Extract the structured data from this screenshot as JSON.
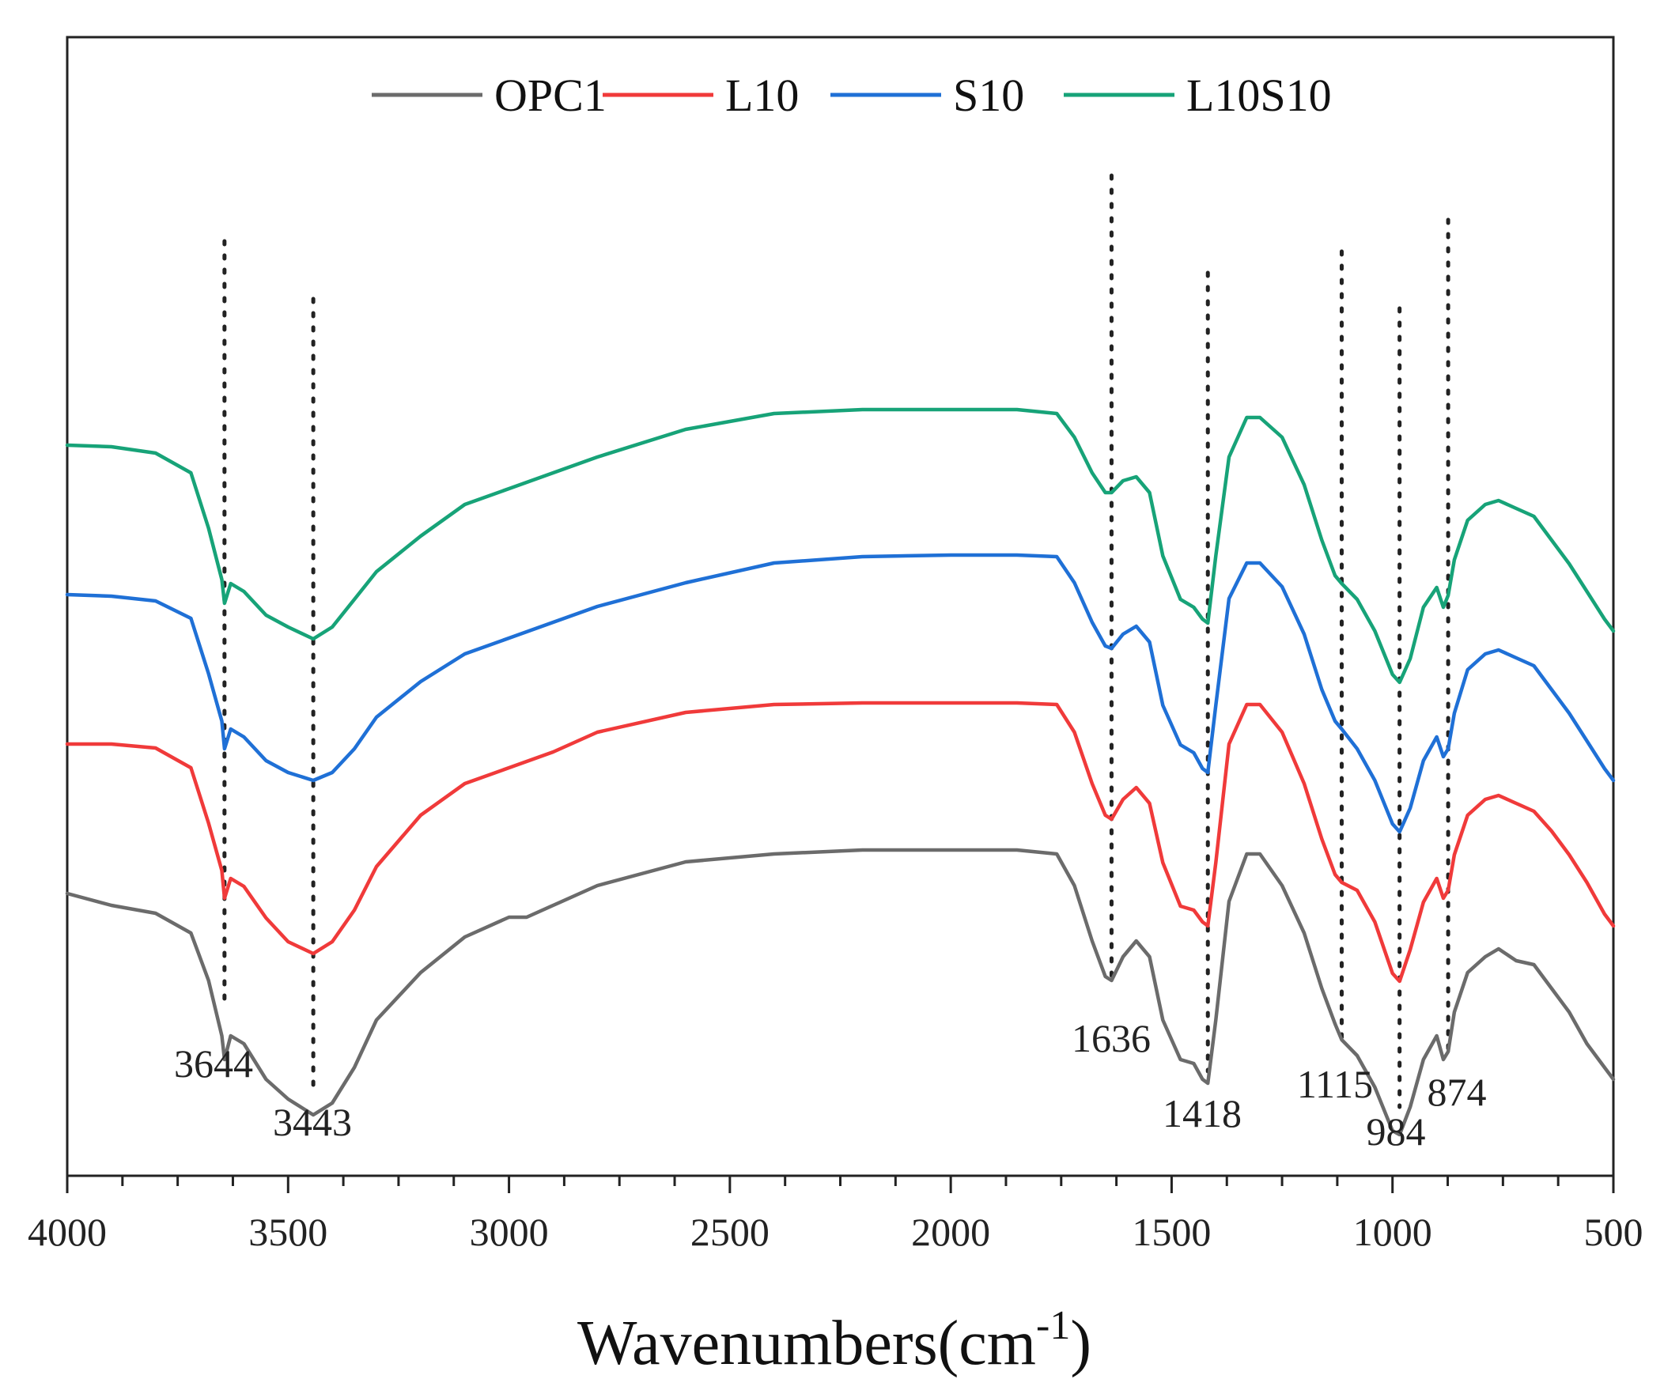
{
  "chart_data": {
    "type": "line",
    "title": "",
    "xlabel": "Wavenumbers(cm",
    "xlabel_superscript": "-1",
    "xlabel_close": ")",
    "ylabel": "",
    "xlim": [
      4000,
      500
    ],
    "x_reversed": true,
    "yticks": "none",
    "xticks": [
      "4000",
      "3500",
      "3000",
      "2500",
      "2000",
      "1500",
      "1000",
      "500"
    ],
    "xtick_values": [
      4000,
      3500,
      3000,
      2500,
      2000,
      1500,
      1000,
      500
    ],
    "legend_position": "top-center",
    "series": [
      {
        "name": "OPC1",
        "color": "#6b6b6b",
        "offset": 0,
        "points": [
          [
            4000,
            0.74
          ],
          [
            3900,
            0.755
          ],
          [
            3800,
            0.765
          ],
          [
            3720,
            0.79
          ],
          [
            3680,
            0.85
          ],
          [
            3650,
            0.92
          ],
          [
            3644,
            0.95
          ],
          [
            3630,
            0.92
          ],
          [
            3600,
            0.93
          ],
          [
            3550,
            0.975
          ],
          [
            3500,
            1.0
          ],
          [
            3443,
            1.02
          ],
          [
            3400,
            1.005
          ],
          [
            3350,
            0.96
          ],
          [
            3300,
            0.9
          ],
          [
            3200,
            0.84
          ],
          [
            3100,
            0.795
          ],
          [
            3000,
            0.77
          ],
          [
            2960,
            0.77
          ],
          [
            2900,
            0.755
          ],
          [
            2800,
            0.73
          ],
          [
            2600,
            0.7
          ],
          [
            2400,
            0.69
          ],
          [
            2200,
            0.685
          ],
          [
            2000,
            0.685
          ],
          [
            1850,
            0.685
          ],
          [
            1760,
            0.69
          ],
          [
            1720,
            0.73
          ],
          [
            1680,
            0.8
          ],
          [
            1650,
            0.845
          ],
          [
            1636,
            0.85
          ],
          [
            1610,
            0.82
          ],
          [
            1580,
            0.8
          ],
          [
            1550,
            0.82
          ],
          [
            1520,
            0.9
          ],
          [
            1480,
            0.95
          ],
          [
            1450,
            0.955
          ],
          [
            1430,
            0.975
          ],
          [
            1418,
            0.98
          ],
          [
            1400,
            0.9
          ],
          [
            1370,
            0.75
          ],
          [
            1330,
            0.69
          ],
          [
            1300,
            0.69
          ],
          [
            1250,
            0.73
          ],
          [
            1200,
            0.79
          ],
          [
            1160,
            0.86
          ],
          [
            1130,
            0.905
          ],
          [
            1115,
            0.925
          ],
          [
            1080,
            0.945
          ],
          [
            1040,
            0.985
          ],
          [
            1000,
            1.04
          ],
          [
            984,
            1.045
          ],
          [
            960,
            1.01
          ],
          [
            930,
            0.95
          ],
          [
            900,
            0.92
          ],
          [
            885,
            0.95
          ],
          [
            874,
            0.94
          ],
          [
            860,
            0.89
          ],
          [
            830,
            0.84
          ],
          [
            790,
            0.82
          ],
          [
            760,
            0.81
          ],
          [
            720,
            0.825
          ],
          [
            680,
            0.83
          ],
          [
            640,
            0.86
          ],
          [
            600,
            0.89
          ],
          [
            560,
            0.93
          ],
          [
            520,
            0.96
          ],
          [
            500,
            0.975
          ]
        ]
      },
      {
        "name": "L10",
        "color": "#f03a3a",
        "offset": -0.2,
        "points": [
          [
            4000,
            0.74
          ],
          [
            3900,
            0.74
          ],
          [
            3800,
            0.745
          ],
          [
            3720,
            0.77
          ],
          [
            3680,
            0.84
          ],
          [
            3650,
            0.9
          ],
          [
            3644,
            0.935
          ],
          [
            3630,
            0.91
          ],
          [
            3600,
            0.92
          ],
          [
            3550,
            0.96
          ],
          [
            3500,
            0.99
          ],
          [
            3443,
            1.005
          ],
          [
            3400,
            0.99
          ],
          [
            3350,
            0.95
          ],
          [
            3300,
            0.895
          ],
          [
            3200,
            0.83
          ],
          [
            3100,
            0.79
          ],
          [
            3000,
            0.77
          ],
          [
            2900,
            0.75
          ],
          [
            2800,
            0.725
          ],
          [
            2600,
            0.7
          ],
          [
            2400,
            0.69
          ],
          [
            2200,
            0.688
          ],
          [
            2000,
            0.688
          ],
          [
            1850,
            0.688
          ],
          [
            1760,
            0.69
          ],
          [
            1720,
            0.725
          ],
          [
            1680,
            0.79
          ],
          [
            1650,
            0.83
          ],
          [
            1636,
            0.835
          ],
          [
            1610,
            0.81
          ],
          [
            1580,
            0.795
          ],
          [
            1550,
            0.815
          ],
          [
            1520,
            0.89
          ],
          [
            1480,
            0.945
          ],
          [
            1450,
            0.95
          ],
          [
            1430,
            0.965
          ],
          [
            1418,
            0.97
          ],
          [
            1400,
            0.89
          ],
          [
            1370,
            0.74
          ],
          [
            1330,
            0.69
          ],
          [
            1300,
            0.69
          ],
          [
            1250,
            0.725
          ],
          [
            1200,
            0.79
          ],
          [
            1160,
            0.86
          ],
          [
            1130,
            0.905
          ],
          [
            1115,
            0.915
          ],
          [
            1080,
            0.925
          ],
          [
            1040,
            0.965
          ],
          [
            1000,
            1.03
          ],
          [
            984,
            1.04
          ],
          [
            960,
            1.0
          ],
          [
            930,
            0.94
          ],
          [
            900,
            0.91
          ],
          [
            885,
            0.935
          ],
          [
            874,
            0.925
          ],
          [
            860,
            0.88
          ],
          [
            830,
            0.83
          ],
          [
            790,
            0.81
          ],
          [
            760,
            0.805
          ],
          [
            720,
            0.815
          ],
          [
            680,
            0.825
          ],
          [
            640,
            0.85
          ],
          [
            600,
            0.88
          ],
          [
            560,
            0.915
          ],
          [
            520,
            0.955
          ],
          [
            500,
            0.97
          ]
        ]
      },
      {
        "name": "S10",
        "color": "#1f70d6",
        "offset": -0.4,
        "points": [
          [
            4000,
            0.74
          ],
          [
            3900,
            0.742
          ],
          [
            3800,
            0.748
          ],
          [
            3720,
            0.77
          ],
          [
            3680,
            0.84
          ],
          [
            3650,
            0.9
          ],
          [
            3644,
            0.935
          ],
          [
            3630,
            0.91
          ],
          [
            3600,
            0.92
          ],
          [
            3550,
            0.95
          ],
          [
            3500,
            0.965
          ],
          [
            3443,
            0.975
          ],
          [
            3400,
            0.965
          ],
          [
            3350,
            0.935
          ],
          [
            3300,
            0.895
          ],
          [
            3200,
            0.85
          ],
          [
            3100,
            0.815
          ],
          [
            3000,
            0.795
          ],
          [
            2900,
            0.775
          ],
          [
            2800,
            0.755
          ],
          [
            2600,
            0.725
          ],
          [
            2400,
            0.7
          ],
          [
            2200,
            0.692
          ],
          [
            2000,
            0.69
          ],
          [
            1850,
            0.69
          ],
          [
            1760,
            0.692
          ],
          [
            1720,
            0.725
          ],
          [
            1680,
            0.775
          ],
          [
            1650,
            0.805
          ],
          [
            1636,
            0.808
          ],
          [
            1610,
            0.79
          ],
          [
            1580,
            0.78
          ],
          [
            1550,
            0.8
          ],
          [
            1520,
            0.88
          ],
          [
            1480,
            0.93
          ],
          [
            1450,
            0.94
          ],
          [
            1430,
            0.96
          ],
          [
            1418,
            0.965
          ],
          [
            1400,
            0.88
          ],
          [
            1370,
            0.745
          ],
          [
            1330,
            0.7
          ],
          [
            1300,
            0.7
          ],
          [
            1250,
            0.73
          ],
          [
            1200,
            0.79
          ],
          [
            1160,
            0.86
          ],
          [
            1130,
            0.9
          ],
          [
            1115,
            0.91
          ],
          [
            1080,
            0.935
          ],
          [
            1040,
            0.975
          ],
          [
            1000,
            1.03
          ],
          [
            984,
            1.04
          ],
          [
            960,
            1.01
          ],
          [
            930,
            0.95
          ],
          [
            900,
            0.92
          ],
          [
            885,
            0.945
          ],
          [
            874,
            0.935
          ],
          [
            860,
            0.89
          ],
          [
            830,
            0.835
          ],
          [
            790,
            0.815
          ],
          [
            760,
            0.81
          ],
          [
            720,
            0.82
          ],
          [
            680,
            0.83
          ],
          [
            640,
            0.86
          ],
          [
            600,
            0.89
          ],
          [
            560,
            0.925
          ],
          [
            520,
            0.96
          ],
          [
            500,
            0.975
          ]
        ]
      },
      {
        "name": "L10S10",
        "color": "#17a378",
        "offset": -0.6,
        "points": [
          [
            4000,
            0.74
          ],
          [
            3900,
            0.742
          ],
          [
            3800,
            0.75
          ],
          [
            3720,
            0.775
          ],
          [
            3680,
            0.845
          ],
          [
            3650,
            0.91
          ],
          [
            3644,
            0.94
          ],
          [
            3630,
            0.915
          ],
          [
            3600,
            0.925
          ],
          [
            3550,
            0.955
          ],
          [
            3500,
            0.97
          ],
          [
            3443,
            0.985
          ],
          [
            3400,
            0.97
          ],
          [
            3350,
            0.935
          ],
          [
            3300,
            0.9
          ],
          [
            3200,
            0.855
          ],
          [
            3100,
            0.815
          ],
          [
            3000,
            0.795
          ],
          [
            2900,
            0.775
          ],
          [
            2800,
            0.755
          ],
          [
            2600,
            0.72
          ],
          [
            2400,
            0.7
          ],
          [
            2200,
            0.695
          ],
          [
            2000,
            0.695
          ],
          [
            1850,
            0.695
          ],
          [
            1760,
            0.7
          ],
          [
            1720,
            0.73
          ],
          [
            1680,
            0.775
          ],
          [
            1650,
            0.8
          ],
          [
            1636,
            0.8
          ],
          [
            1610,
            0.785
          ],
          [
            1580,
            0.78
          ],
          [
            1550,
            0.8
          ],
          [
            1520,
            0.88
          ],
          [
            1480,
            0.935
          ],
          [
            1450,
            0.945
          ],
          [
            1430,
            0.96
          ],
          [
            1418,
            0.965
          ],
          [
            1400,
            0.88
          ],
          [
            1370,
            0.755
          ],
          [
            1330,
            0.705
          ],
          [
            1300,
            0.705
          ],
          [
            1250,
            0.73
          ],
          [
            1200,
            0.79
          ],
          [
            1160,
            0.86
          ],
          [
            1130,
            0.905
          ],
          [
            1115,
            0.915
          ],
          [
            1080,
            0.935
          ],
          [
            1040,
            0.975
          ],
          [
            1000,
            1.03
          ],
          [
            984,
            1.04
          ],
          [
            960,
            1.01
          ],
          [
            930,
            0.945
          ],
          [
            900,
            0.92
          ],
          [
            885,
            0.945
          ],
          [
            874,
            0.93
          ],
          [
            860,
            0.885
          ],
          [
            830,
            0.835
          ],
          [
            790,
            0.815
          ],
          [
            760,
            0.81
          ],
          [
            720,
            0.82
          ],
          [
            680,
            0.83
          ],
          [
            640,
            0.86
          ],
          [
            600,
            0.89
          ],
          [
            560,
            0.925
          ],
          [
            520,
            0.96
          ],
          [
            500,
            0.975
          ]
        ]
      }
    ],
    "peaks": [
      {
        "wavenumber": 3644,
        "label": "3644"
      },
      {
        "wavenumber": 3443,
        "label": "3443"
      },
      {
        "wavenumber": 1636,
        "label": "1636"
      },
      {
        "wavenumber": 1418,
        "label": "1418"
      },
      {
        "wavenumber": 1115,
        "label": "1115"
      },
      {
        "wavenumber": 984,
        "label": "984"
      },
      {
        "wavenumber": 874,
        "label": "874"
      }
    ]
  }
}
